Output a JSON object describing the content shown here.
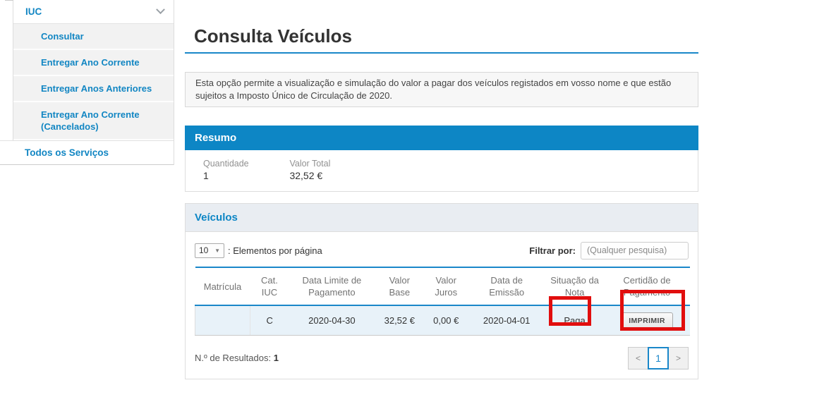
{
  "sidebar": {
    "group_label": "IUC",
    "items": [
      {
        "label": "Consultar"
      },
      {
        "label": "Entregar Ano Corrente"
      },
      {
        "label": "Entregar Anos Anteriores"
      },
      {
        "label": "Entregar Ano Corrente (Cancelados)"
      }
    ],
    "footer_item": "Todos os Serviços"
  },
  "page": {
    "title": "Consulta Veículos",
    "description": "Esta opção permite a visualização e simulação do valor a pagar dos veículos registados em vosso nome e que estão sujeitos a Imposto Único de Circulação de 2020."
  },
  "resumo": {
    "title": "Resumo",
    "quantidade_label": "Quantidade",
    "quantidade_value": "1",
    "valor_total_label": "Valor Total",
    "valor_total_value": "32,52 €"
  },
  "veiculos": {
    "title": "Veículos",
    "page_size_value": "10",
    "page_size_arrow": "▼",
    "page_size_label": ": Elementos por página",
    "filter_label": "Filtrar por:",
    "filter_placeholder": "(Qualquer pesquisa)",
    "table": {
      "headers": [
        "Matrícula",
        "Cat. IUC",
        "Data Limite de Pagamento",
        "Valor Base",
        "Valor Juros",
        "Data de Emissão",
        "Situação da Nota",
        "Certidão de Pagamento"
      ],
      "row": {
        "matricula": "",
        "cat_iuc": "C",
        "data_limite": "2020-04-30",
        "valor_base": "32,52 €",
        "valor_juros": "0,00 €",
        "data_emissao": "2020-04-01",
        "situacao": "Paga",
        "certidao_button": "IMPRIMIR"
      }
    },
    "results_label": "N.º de Resultados:",
    "results_value": "1",
    "pagination": {
      "prev": "<",
      "current": "1",
      "next": ">"
    }
  },
  "colors": {
    "accent_blue": "#0d86c5",
    "link_blue": "#1286c3",
    "row_highlight": "#e8f2f9",
    "annotation_red": "#e10e0e"
  }
}
